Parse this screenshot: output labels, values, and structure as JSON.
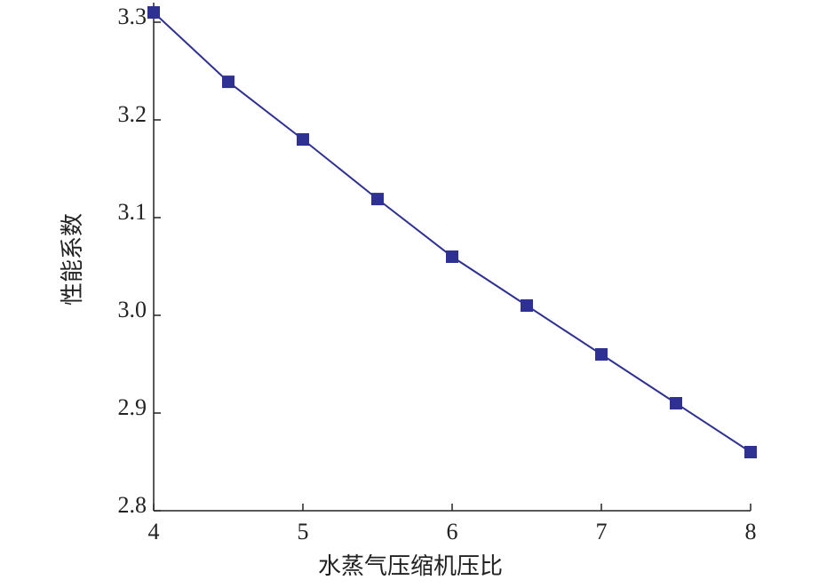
{
  "chart_data": {
    "type": "line",
    "x_label": "水蒸气压缩机压比",
    "y_label": "性能系数",
    "x": [
      4,
      4.5,
      5,
      5.5,
      6,
      6.5,
      7,
      7.5,
      8
    ],
    "series": [
      {
        "name": null,
        "color": "#2e3192",
        "values": [
          3.31,
          3.239,
          3.18,
          3.119,
          3.06,
          3.01,
          2.96,
          2.91,
          2.86
        ]
      }
    ],
    "xlim": [
      4,
      8
    ],
    "xticks": [
      4,
      5,
      6,
      7,
      8
    ],
    "ylim": [
      2.8,
      3.32
    ],
    "yticks": [
      {
        "value": 2.8,
        "label": "2.8"
      },
      {
        "value": 2.9,
        "label": "2.9"
      },
      {
        "value": 3.0,
        "label": "3.0"
      },
      {
        "value": 3.1,
        "label": "3.1"
      },
      {
        "value": 3.2,
        "label": "3.2"
      },
      {
        "value": 3.3,
        "label": "3.3"
      }
    ],
    "marker": "square",
    "grid": false
  }
}
